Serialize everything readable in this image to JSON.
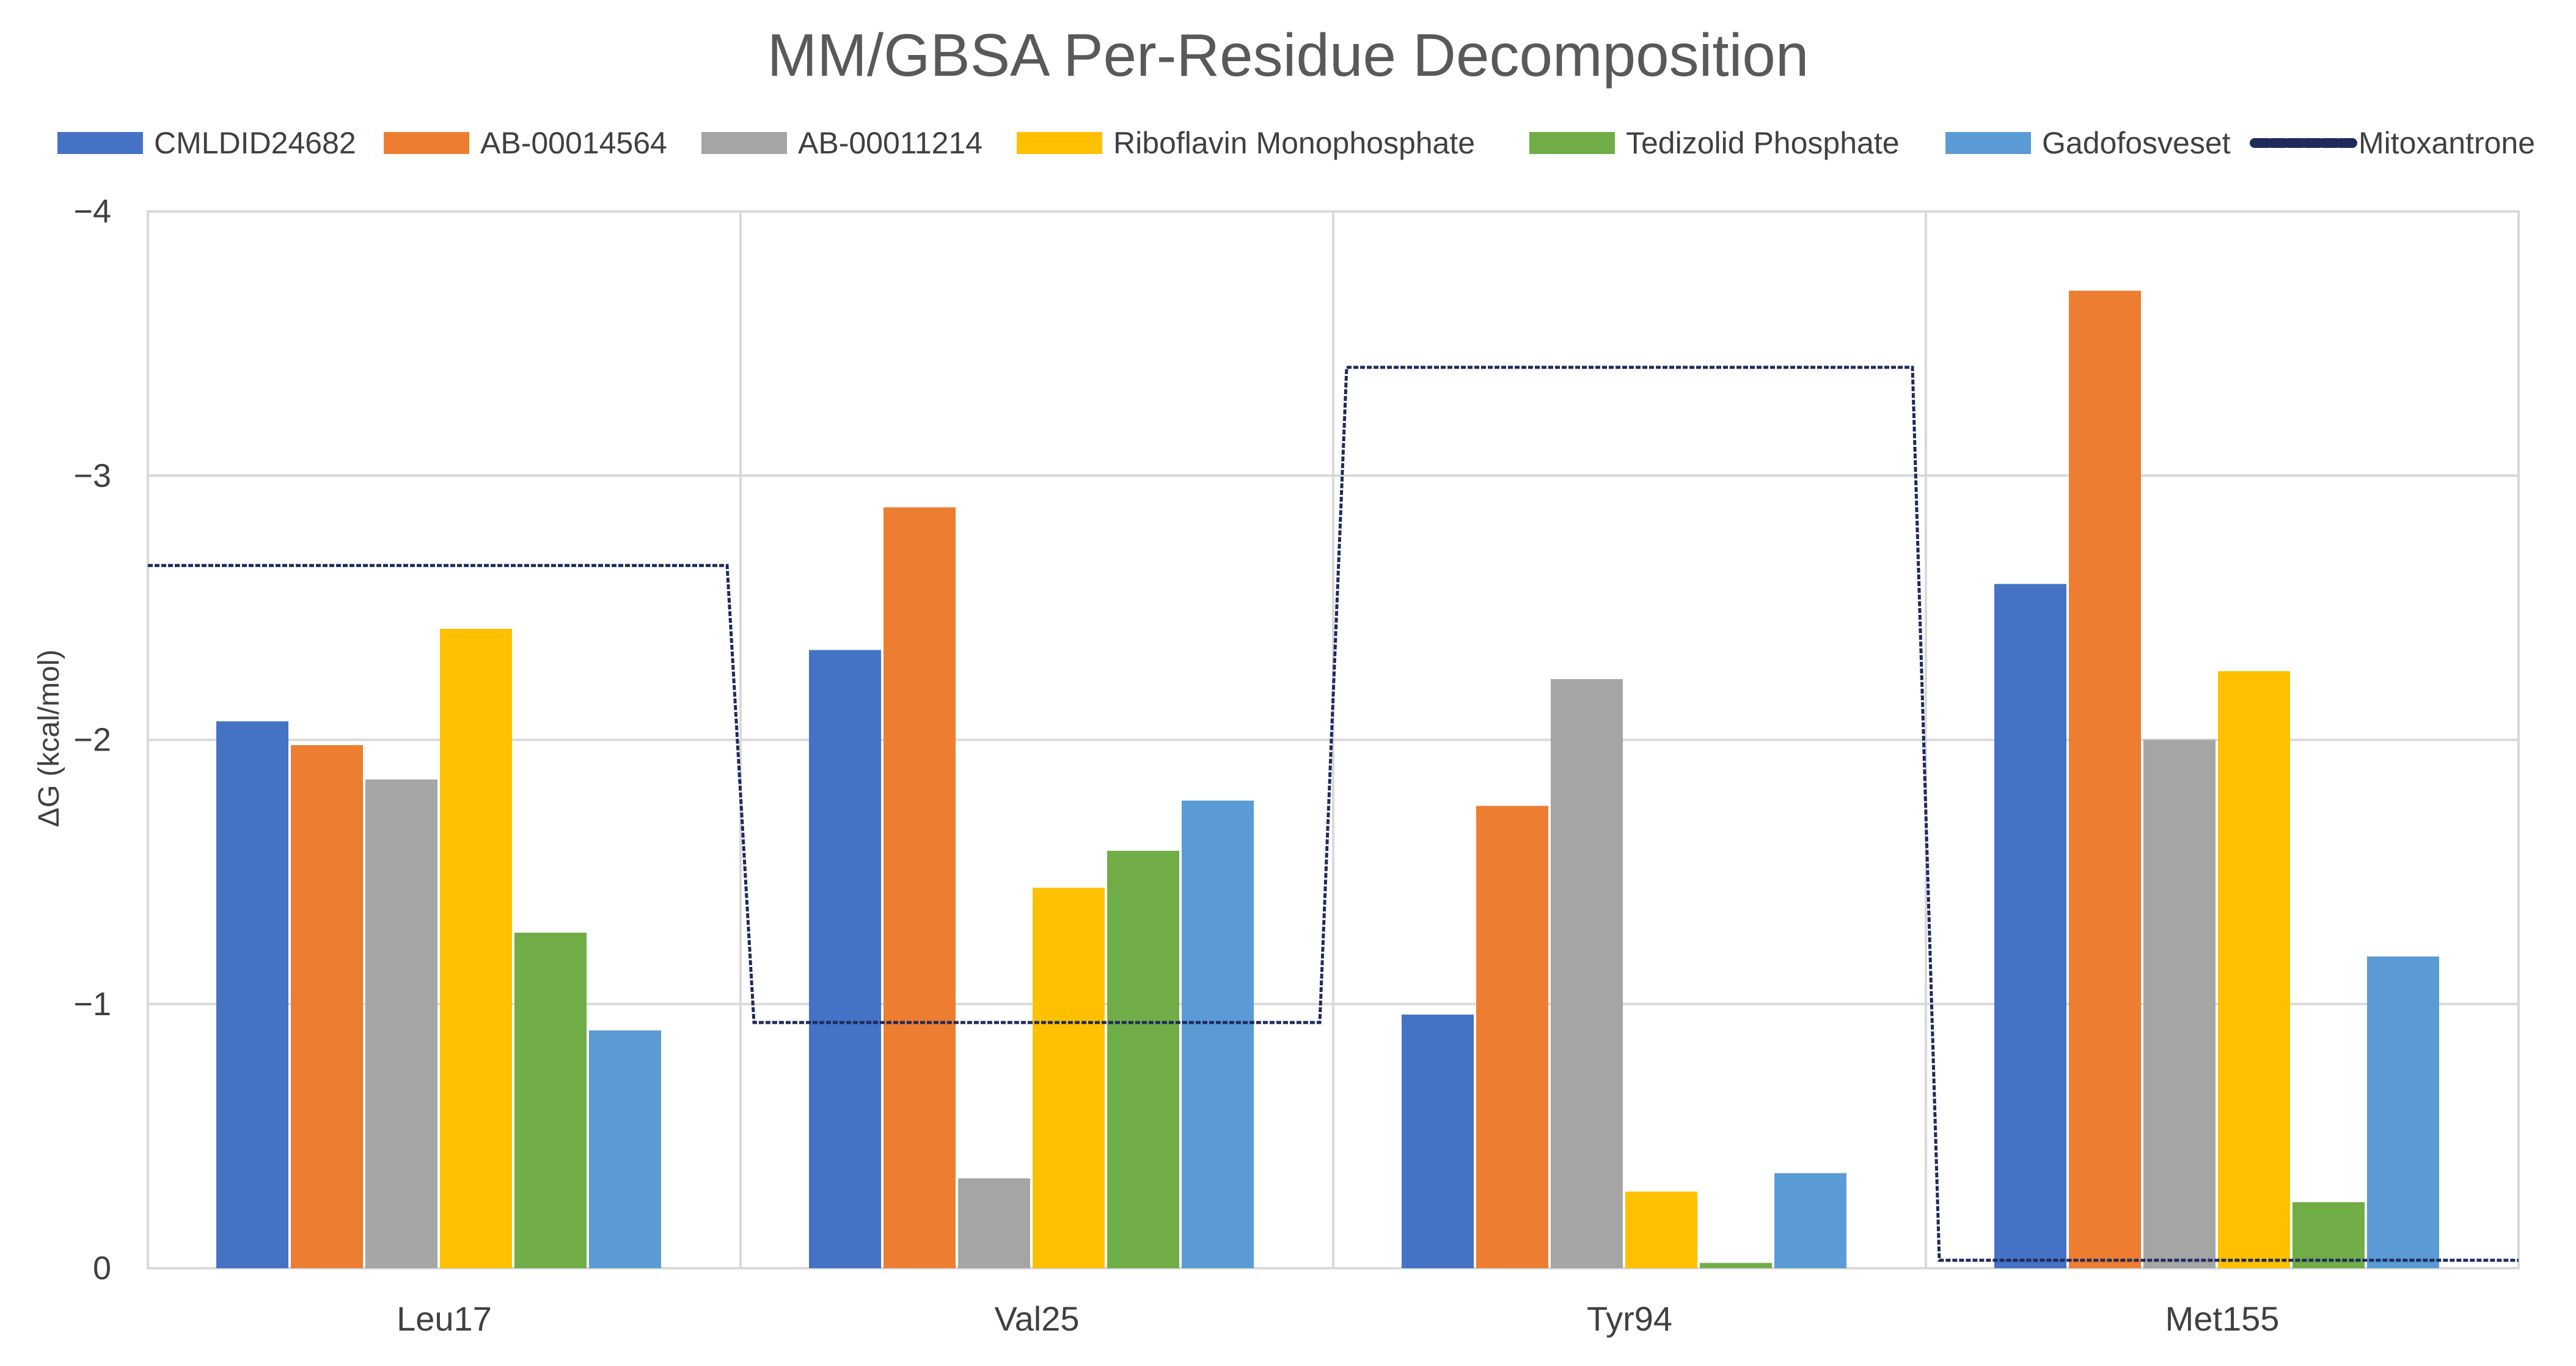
{
  "chart_data": {
    "type": "bar",
    "title": "MM/GBSA Per-Residue Decomposition",
    "xlabel": "",
    "ylabel": "ΔG  (kcal/mol)",
    "ylim": [
      0,
      -4
    ],
    "yticks": [
      0,
      -1,
      -2,
      -3,
      -4
    ],
    "ytick_labels": [
      "0",
      "−1",
      "−2",
      "−3",
      "−4"
    ],
    "categories": [
      "Leu17",
      "Val25",
      "Tyr94",
      "Met155"
    ],
    "series": [
      {
        "name": "CMLDID24682",
        "color": "#4472C4",
        "values": [
          -2.07,
          -2.34,
          -0.96,
          -2.59
        ]
      },
      {
        "name": "AB-00014564",
        "color": "#ED7D31",
        "values": [
          -1.98,
          -2.88,
          -1.75,
          -3.7
        ]
      },
      {
        "name": "AB-00011214",
        "color": "#A5A5A5",
        "values": [
          -1.85,
          -0.34,
          -2.23,
          -2.0
        ]
      },
      {
        "name": "Riboflavin Monophosphate",
        "color": "#FFC000",
        "values": [
          -2.42,
          -1.44,
          -0.29,
          -2.26
        ]
      },
      {
        "name": "Tedizolid Phosphate",
        "color": "#70AD47",
        "values": [
          -1.27,
          -1.58,
          -0.02,
          -0.25
        ]
      },
      {
        "name": "Gadofosveset",
        "color": "#5B9BD5",
        "values": [
          -0.9,
          -1.77,
          -0.36,
          -1.18
        ]
      }
    ],
    "line_series": {
      "name": "Mitoxantrone",
      "color": "#1F2A5C",
      "values": [
        -2.66,
        -0.93,
        -3.41,
        -0.03
      ]
    },
    "legend_position": "top",
    "grid": true
  }
}
